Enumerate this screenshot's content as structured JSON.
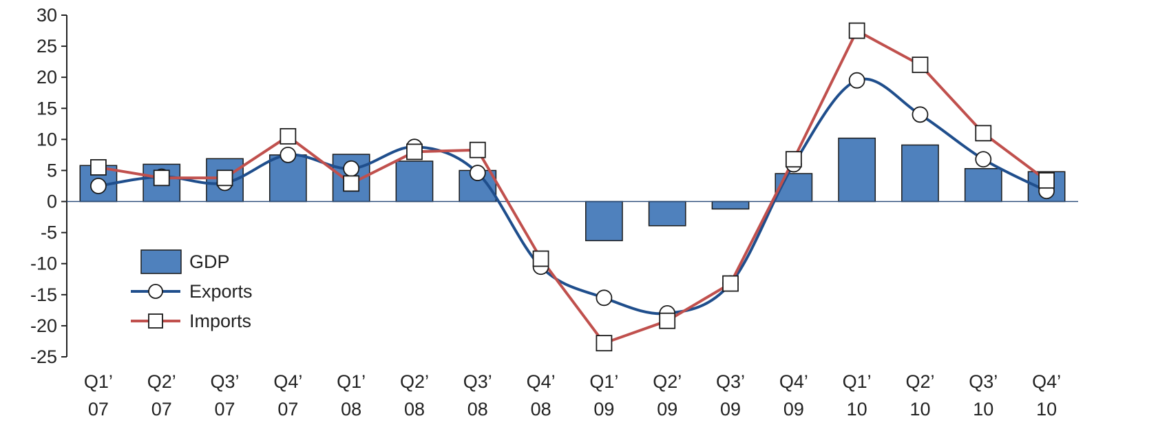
{
  "chart_data": {
    "type": "bar",
    "title": "",
    "xlabel": "",
    "ylabel": "",
    "ylim": [
      -25,
      30
    ],
    "yticks": [
      30,
      25,
      20,
      15,
      10,
      5,
      0,
      -5,
      -10,
      -15,
      -20,
      -25
    ],
    "grid": false,
    "legend_position": "lower-left",
    "categories": [
      [
        "Q1’",
        "07"
      ],
      [
        "Q2’",
        "07"
      ],
      [
        "Q3’",
        "07"
      ],
      [
        "Q4’",
        "07"
      ],
      [
        "Q1’",
        "08"
      ],
      [
        "Q2’",
        "08"
      ],
      [
        "Q3’",
        "08"
      ],
      [
        "Q4’",
        "08"
      ],
      [
        "Q1’",
        "09"
      ],
      [
        "Q2’",
        "09"
      ],
      [
        "Q3’",
        "09"
      ],
      [
        "Q4’",
        "09"
      ],
      [
        "Q1’",
        "10"
      ],
      [
        "Q2’",
        "10"
      ],
      [
        "Q3’",
        "10"
      ],
      [
        "Q4’",
        "10"
      ]
    ],
    "series": [
      {
        "name": "GDP",
        "kind": "bar",
        "color": "#4f81bd",
        "values": [
          5.8,
          6.0,
          6.9,
          7.5,
          7.6,
          6.5,
          5.0,
          0.0,
          -6.3,
          -3.9,
          -1.2,
          4.5,
          10.2,
          9.1,
          5.3,
          4.8
        ]
      },
      {
        "name": "Exports",
        "kind": "line",
        "marker": "circle",
        "color": "#1f4e8c",
        "values": [
          2.5,
          4.0,
          3.0,
          7.5,
          5.3,
          8.8,
          4.6,
          -10.5,
          -15.5,
          -18.0,
          -13.2,
          6.0,
          19.5,
          14.0,
          6.8,
          1.7
        ]
      },
      {
        "name": "Imports",
        "kind": "line",
        "marker": "square",
        "color": "#c0504d",
        "values": [
          5.5,
          3.8,
          3.8,
          10.5,
          2.9,
          8.0,
          8.3,
          -9.2,
          -22.8,
          -19.2,
          -13.2,
          6.8,
          27.5,
          22.0,
          11.0,
          3.4
        ]
      }
    ]
  }
}
